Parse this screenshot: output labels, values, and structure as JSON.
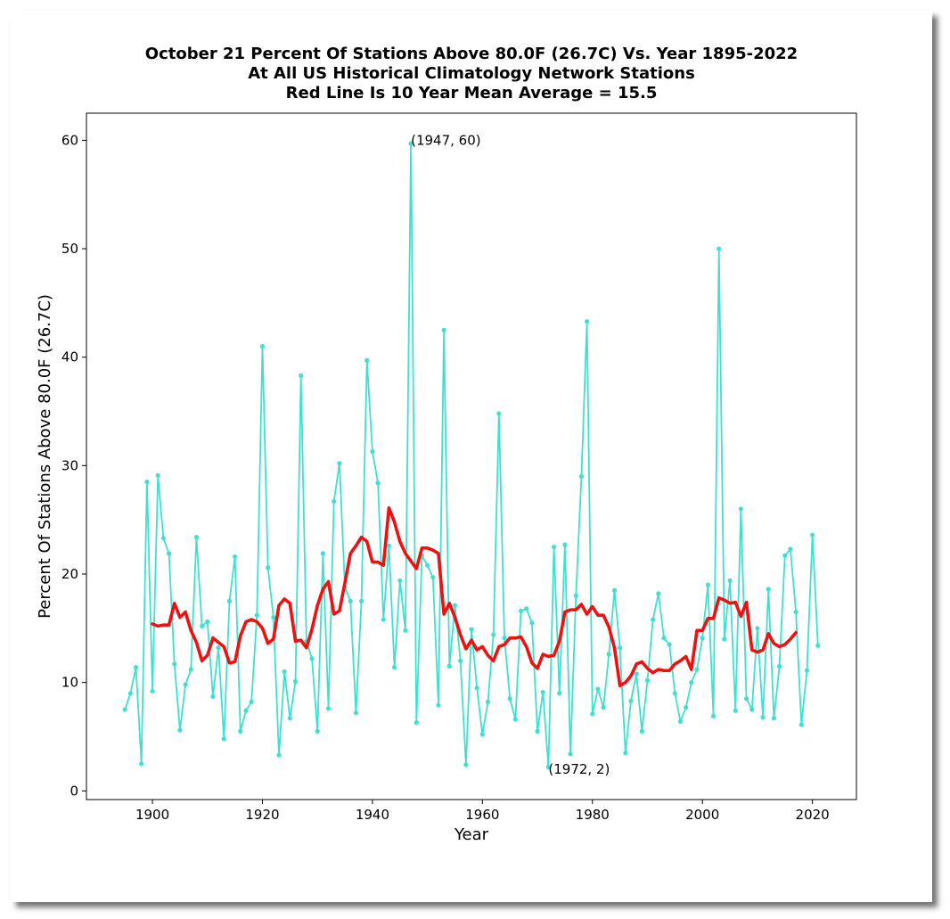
{
  "chart_data": {
    "type": "line",
    "title_lines": [
      "October 21 Percent Of Stations Above 80.0F (26.7C) Vs. Year 1895-2022",
      "At All US Historical Climatology Network Stations",
      "Red Line Is 10 Year Mean  Average = 15.5"
    ],
    "xlabel": "Year",
    "ylabel": "Percent Of Stations Above 80.0F (26.7C)",
    "xlim": [
      1888,
      2028
    ],
    "ylim": [
      -0.8,
      62.5
    ],
    "xticks": [
      1900,
      1920,
      1940,
      1960,
      1980,
      2000,
      2020
    ],
    "yticks": [
      0,
      10,
      20,
      30,
      40,
      50,
      60
    ],
    "grid": false,
    "colors": {
      "data": "#40e0d0",
      "mean": "#ee1111"
    },
    "series": [
      {
        "style": "line-with-markers",
        "x_start": 1895,
        "values": [
          7.5,
          9.0,
          11.4,
          2.5,
          28.5,
          9.2,
          29.1,
          23.3,
          21.9,
          11.7,
          5.6,
          9.8,
          11.2,
          23.4,
          15.2,
          15.6,
          8.7,
          13.2,
          4.8,
          17.5,
          21.6,
          5.5,
          7.4,
          8.2,
          16.2,
          41.0,
          20.6,
          16.0,
          3.3,
          11.0,
          6.7,
          10.1,
          38.3,
          13.8,
          12.2,
          5.5,
          21.9,
          7.6,
          26.7,
          30.2,
          18.8,
          17.5,
          7.2,
          17.5,
          39.7,
          31.3,
          28.4,
          15.8,
          22.6,
          11.4,
          19.4,
          14.8,
          59.7,
          6.3,
          21.7,
          20.8,
          19.7,
          7.9,
          42.5,
          11.5,
          17.1,
          12.0,
          2.4,
          14.9,
          9.5,
          5.2,
          8.2,
          14.4,
          34.8,
          14.1,
          8.5,
          6.6,
          16.6,
          16.8,
          15.5,
          5.5,
          9.1,
          2.2,
          22.5,
          9.0,
          22.7,
          3.4,
          18.0,
          29.0,
          43.3,
          7.1,
          9.4,
          7.7,
          12.6,
          18.5,
          13.2,
          3.5,
          8.3,
          10.8,
          5.5,
          10.2,
          15.8,
          18.2,
          14.1,
          13.5,
          9.0,
          6.4,
          7.7,
          10.0,
          11.2,
          14.1,
          19.0,
          6.9,
          50.0,
          14.0,
          19.4,
          7.4,
          26.0,
          8.5,
          7.5,
          15.0,
          6.8,
          18.6,
          6.7,
          11.5,
          21.7,
          22.3,
          16.5,
          6.1,
          11.1,
          23.6,
          13.4
        ]
      },
      {
        "style": "thick-line",
        "x_start": 1900,
        "values": [
          15.4,
          15.2,
          15.3,
          15.3,
          17.3,
          16.0,
          16.5,
          14.8,
          13.7,
          12.0,
          12.5,
          14.1,
          13.7,
          13.3,
          11.8,
          11.9,
          14.3,
          15.6,
          15.8,
          15.6,
          15.0,
          13.6,
          14.0,
          17.1,
          17.7,
          17.3,
          13.8,
          13.9,
          13.2,
          14.9,
          17.1,
          18.6,
          19.3,
          16.3,
          16.6,
          19.2,
          21.9,
          22.6,
          23.4,
          23.0,
          21.1,
          21.1,
          20.8,
          26.1,
          24.8,
          23.0,
          21.9,
          21.2,
          20.5,
          22.4,
          22.4,
          22.2,
          21.9,
          16.3,
          17.3,
          16.0,
          14.4,
          13.1,
          13.9,
          13.0,
          13.3,
          12.5,
          12.0,
          13.3,
          13.5,
          14.1,
          14.1,
          14.2,
          13.3,
          11.8,
          11.3,
          12.6,
          12.4,
          12.5,
          13.8,
          16.5,
          16.7,
          16.7,
          17.2,
          16.3,
          17.0,
          16.2,
          16.2,
          15.1,
          13.2,
          9.7,
          10.0,
          10.6,
          11.7,
          11.9,
          11.3,
          10.9,
          11.2,
          11.1,
          11.1,
          11.7,
          12.0,
          12.4,
          11.2,
          14.8,
          14.8,
          15.9,
          15.9,
          17.8,
          17.6,
          17.3,
          17.4,
          16.1,
          17.4,
          13.0,
          12.8,
          13.0,
          14.5,
          13.6,
          13.3,
          13.5,
          14.0,
          14.6
        ]
      }
    ],
    "annotations": [
      {
        "x": 1947,
        "y": 60,
        "text": "(1947, 60)"
      },
      {
        "x": 1972,
        "y": 2,
        "text": "(1972, 2)"
      }
    ]
  }
}
